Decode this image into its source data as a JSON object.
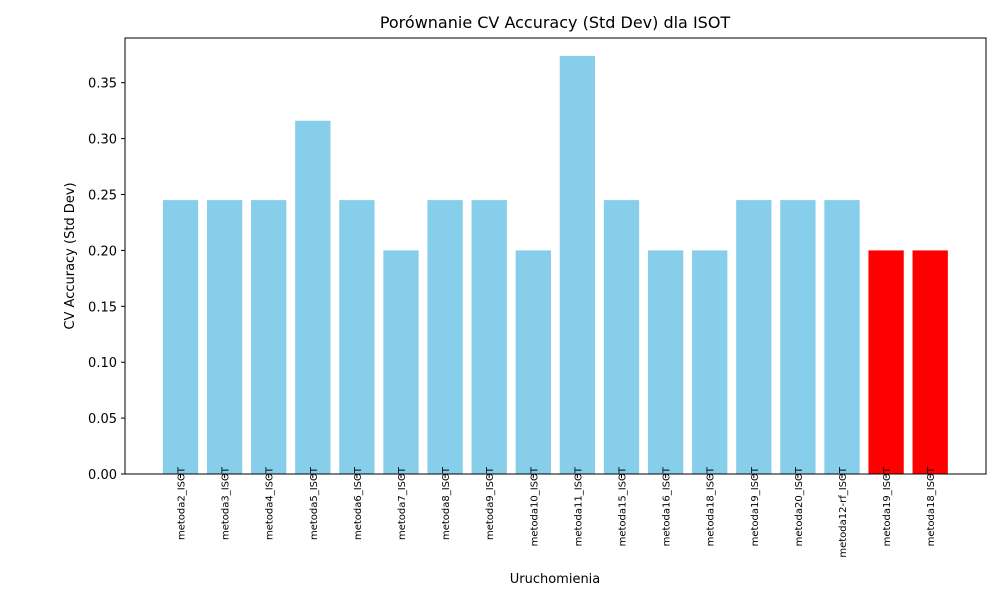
{
  "chart_data": {
    "type": "bar",
    "title": "Porównanie CV Accuracy (Std Dev) dla ISOT",
    "xlabel": "Uruchomienia",
    "ylabel": "CV Accuracy (Std Dev)",
    "ylim": [
      0,
      0.39
    ],
    "yticks": [
      "0.00",
      "0.05",
      "0.10",
      "0.15",
      "0.20",
      "0.25",
      "0.30",
      "0.35"
    ],
    "categories": [
      "metoda2_ISOT",
      "metoda3_ISOT",
      "metoda4_ISOT",
      "metoda5_ISOT",
      "metoda6_ISOT",
      "metoda7_ISOT",
      "metoda8_ISOT",
      "metoda9_ISOT",
      "metoda10_ISOT",
      "metoda11_ISOT",
      "metoda15_ISOT",
      "metoda16_ISOT",
      "metoda18_ISOT",
      "metoda19_ISOT",
      "metoda20_ISOT",
      "metoda12-rf_ISOT",
      "metoda19_ISOT",
      "metoda18_ISOT"
    ],
    "values": [
      0.245,
      0.245,
      0.245,
      0.316,
      0.245,
      0.2,
      0.245,
      0.245,
      0.2,
      0.374,
      0.245,
      0.2,
      0.2,
      0.245,
      0.245,
      0.245,
      0.2,
      0.2
    ],
    "bar_colors": [
      "#87ceeb",
      "#87ceeb",
      "#87ceeb",
      "#87ceeb",
      "#87ceeb",
      "#87ceeb",
      "#87ceeb",
      "#87ceeb",
      "#87ceeb",
      "#87ceeb",
      "#87ceeb",
      "#87ceeb",
      "#87ceeb",
      "#87ceeb",
      "#87ceeb",
      "#87ceeb",
      "#ff0000",
      "#ff0000"
    ],
    "grid": false,
    "legend": "none"
  }
}
